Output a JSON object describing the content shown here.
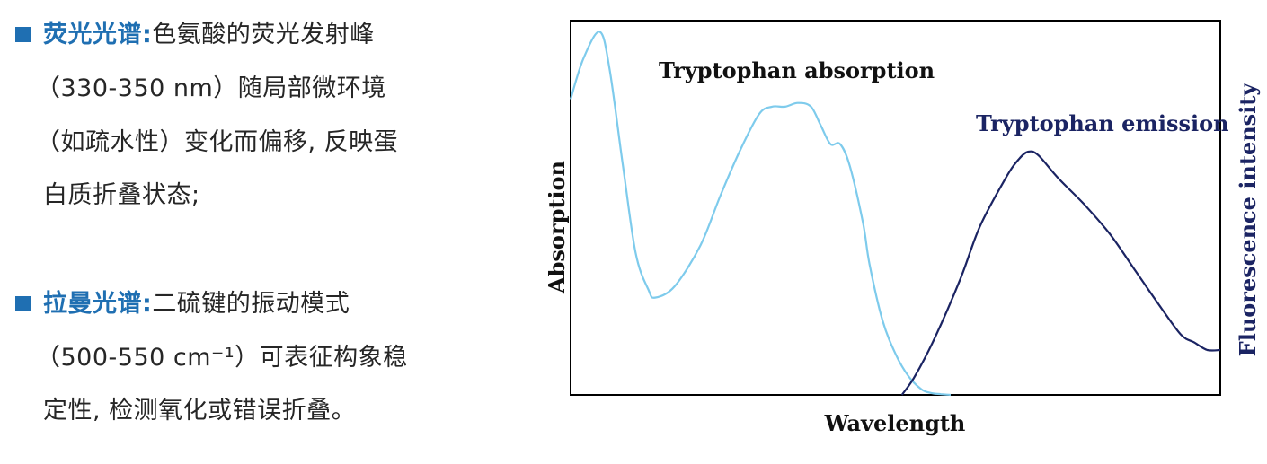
{
  "bullets": [
    {
      "heading": "荧光光谱:",
      "lines": [
        "色氨酸的荧光发射峰",
        "（330-350 nm）随局部微环境",
        "（如疏水性）变化而偏移, 反映蛋",
        "白质折叠状态;"
      ]
    },
    {
      "heading": "拉曼光谱:",
      "lines": [
        "二硫键的振动模式",
        "（500-550 cm⁻¹）可表征构象稳",
        "定性, 检测氧化或错误折叠。"
      ]
    }
  ],
  "colors": {
    "accent": "#1f6fb2",
    "absorption_curve": "#7ecbec",
    "emission_curve": "#1b2463",
    "emission_text": "#1b2463",
    "text": "#262626"
  },
  "chart_data": {
    "type": "line",
    "xlabel": "Wavelength",
    "ylabel_left": "Absorption",
    "ylabel_right": "Fluorescence intensity",
    "ticks": "none",
    "grid": false,
    "xlim": [
      0,
      100
    ],
    "ylim": [
      0,
      100
    ],
    "series": [
      {
        "name": "Tryptophan absorption",
        "color": "#7ecbec",
        "x": [
          0,
          2,
          4.5,
          6,
          8,
          10,
          12,
          13,
          16,
          20,
          23,
          26,
          29,
          31,
          33,
          35,
          37,
          38.5,
          40,
          41.5,
          43,
          45,
          46,
          48,
          50,
          52,
          54,
          55.5,
          57,
          58.5
        ],
        "y": [
          79,
          90,
          97,
          87,
          62,
          38,
          28,
          26,
          29,
          40,
          53,
          65,
          75,
          77,
          77,
          78,
          77,
          72,
          67,
          67,
          61,
          46,
          35,
          20,
          11,
          5,
          1.5,
          0.5,
          0.2,
          0
        ]
      },
      {
        "name": "Tryptophan emission",
        "color": "#1b2463",
        "x": [
          51,
          53,
          56,
          60,
          63,
          67,
          69,
          70.5,
          72,
          75,
          79,
          83,
          87,
          91,
          94,
          96,
          98,
          100
        ],
        "y": [
          0,
          5,
          15,
          31,
          45,
          58,
          63,
          65,
          64,
          58,
          51,
          43,
          33,
          23,
          16,
          14,
          12,
          12
        ]
      }
    ]
  }
}
